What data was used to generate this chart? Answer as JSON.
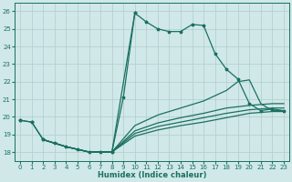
{
  "bg_color": "#d0e8e8",
  "grid_color": "#b0cccc",
  "line_color": "#1a7060",
  "xlabel": "Humidex (Indice chaleur)",
  "xlim": [
    -0.5,
    23.5
  ],
  "ylim": [
    17.5,
    26.5
  ],
  "xticks": [
    0,
    1,
    2,
    3,
    4,
    5,
    6,
    7,
    8,
    9,
    10,
    11,
    12,
    13,
    14,
    15,
    16,
    17,
    18,
    19,
    20,
    21,
    22,
    23
  ],
  "yticks": [
    18,
    19,
    20,
    21,
    22,
    23,
    24,
    25,
    26
  ],
  "main_line": {
    "x": [
      0,
      1,
      2,
      3,
      4,
      5,
      6,
      7,
      8,
      10,
      11,
      12,
      13,
      14,
      15,
      16,
      17,
      18,
      19,
      20,
      21,
      22,
      23
    ],
    "y": [
      19.8,
      19.7,
      18.7,
      18.5,
      18.3,
      18.15,
      18.0,
      18.0,
      18.0,
      25.9,
      25.4,
      25.0,
      24.85,
      24.85,
      25.25,
      25.2,
      23.6,
      22.7,
      22.15,
      20.75,
      20.35,
      20.45,
      20.35
    ],
    "has_markers": true
  },
  "spike_to_main": {
    "x": [
      8,
      9,
      10
    ],
    "y": [
      18.0,
      21.1,
      25.9
    ],
    "has_markers": true
  },
  "diagonal_line_high": {
    "x": [
      2,
      4,
      6,
      8,
      10,
      12,
      14,
      16,
      18,
      19,
      20,
      21,
      22,
      23
    ],
    "y": [
      18.7,
      18.3,
      18.0,
      18.0,
      19.5,
      20.1,
      20.5,
      20.9,
      21.5,
      22.0,
      22.1,
      20.75,
      20.35,
      20.35
    ],
    "has_markers": false
  },
  "diagonal_line_mid1": {
    "x": [
      2,
      4,
      6,
      8,
      10,
      12,
      14,
      16,
      18,
      20,
      21,
      22,
      23
    ],
    "y": [
      18.7,
      18.3,
      18.0,
      18.0,
      19.2,
      19.65,
      19.95,
      20.2,
      20.5,
      20.65,
      20.7,
      20.75,
      20.75
    ],
    "has_markers": false
  },
  "diagonal_line_mid2": {
    "x": [
      2,
      4,
      6,
      8,
      10,
      12,
      14,
      16,
      18,
      20,
      21,
      22,
      23
    ],
    "y": [
      18.7,
      18.3,
      18.0,
      18.0,
      19.05,
      19.45,
      19.7,
      19.95,
      20.2,
      20.4,
      20.45,
      20.5,
      20.5
    ],
    "has_markers": false
  },
  "diagonal_line_low": {
    "x": [
      2,
      4,
      6,
      8,
      10,
      12,
      14,
      16,
      18,
      20,
      21,
      22,
      23
    ],
    "y": [
      18.7,
      18.3,
      18.0,
      18.0,
      18.9,
      19.25,
      19.5,
      19.7,
      19.95,
      20.2,
      20.25,
      20.3,
      20.3
    ],
    "has_markers": false
  },
  "left_stub": {
    "x": [
      0,
      1,
      2
    ],
    "y": [
      19.8,
      19.7,
      18.7
    ],
    "has_markers": true
  }
}
